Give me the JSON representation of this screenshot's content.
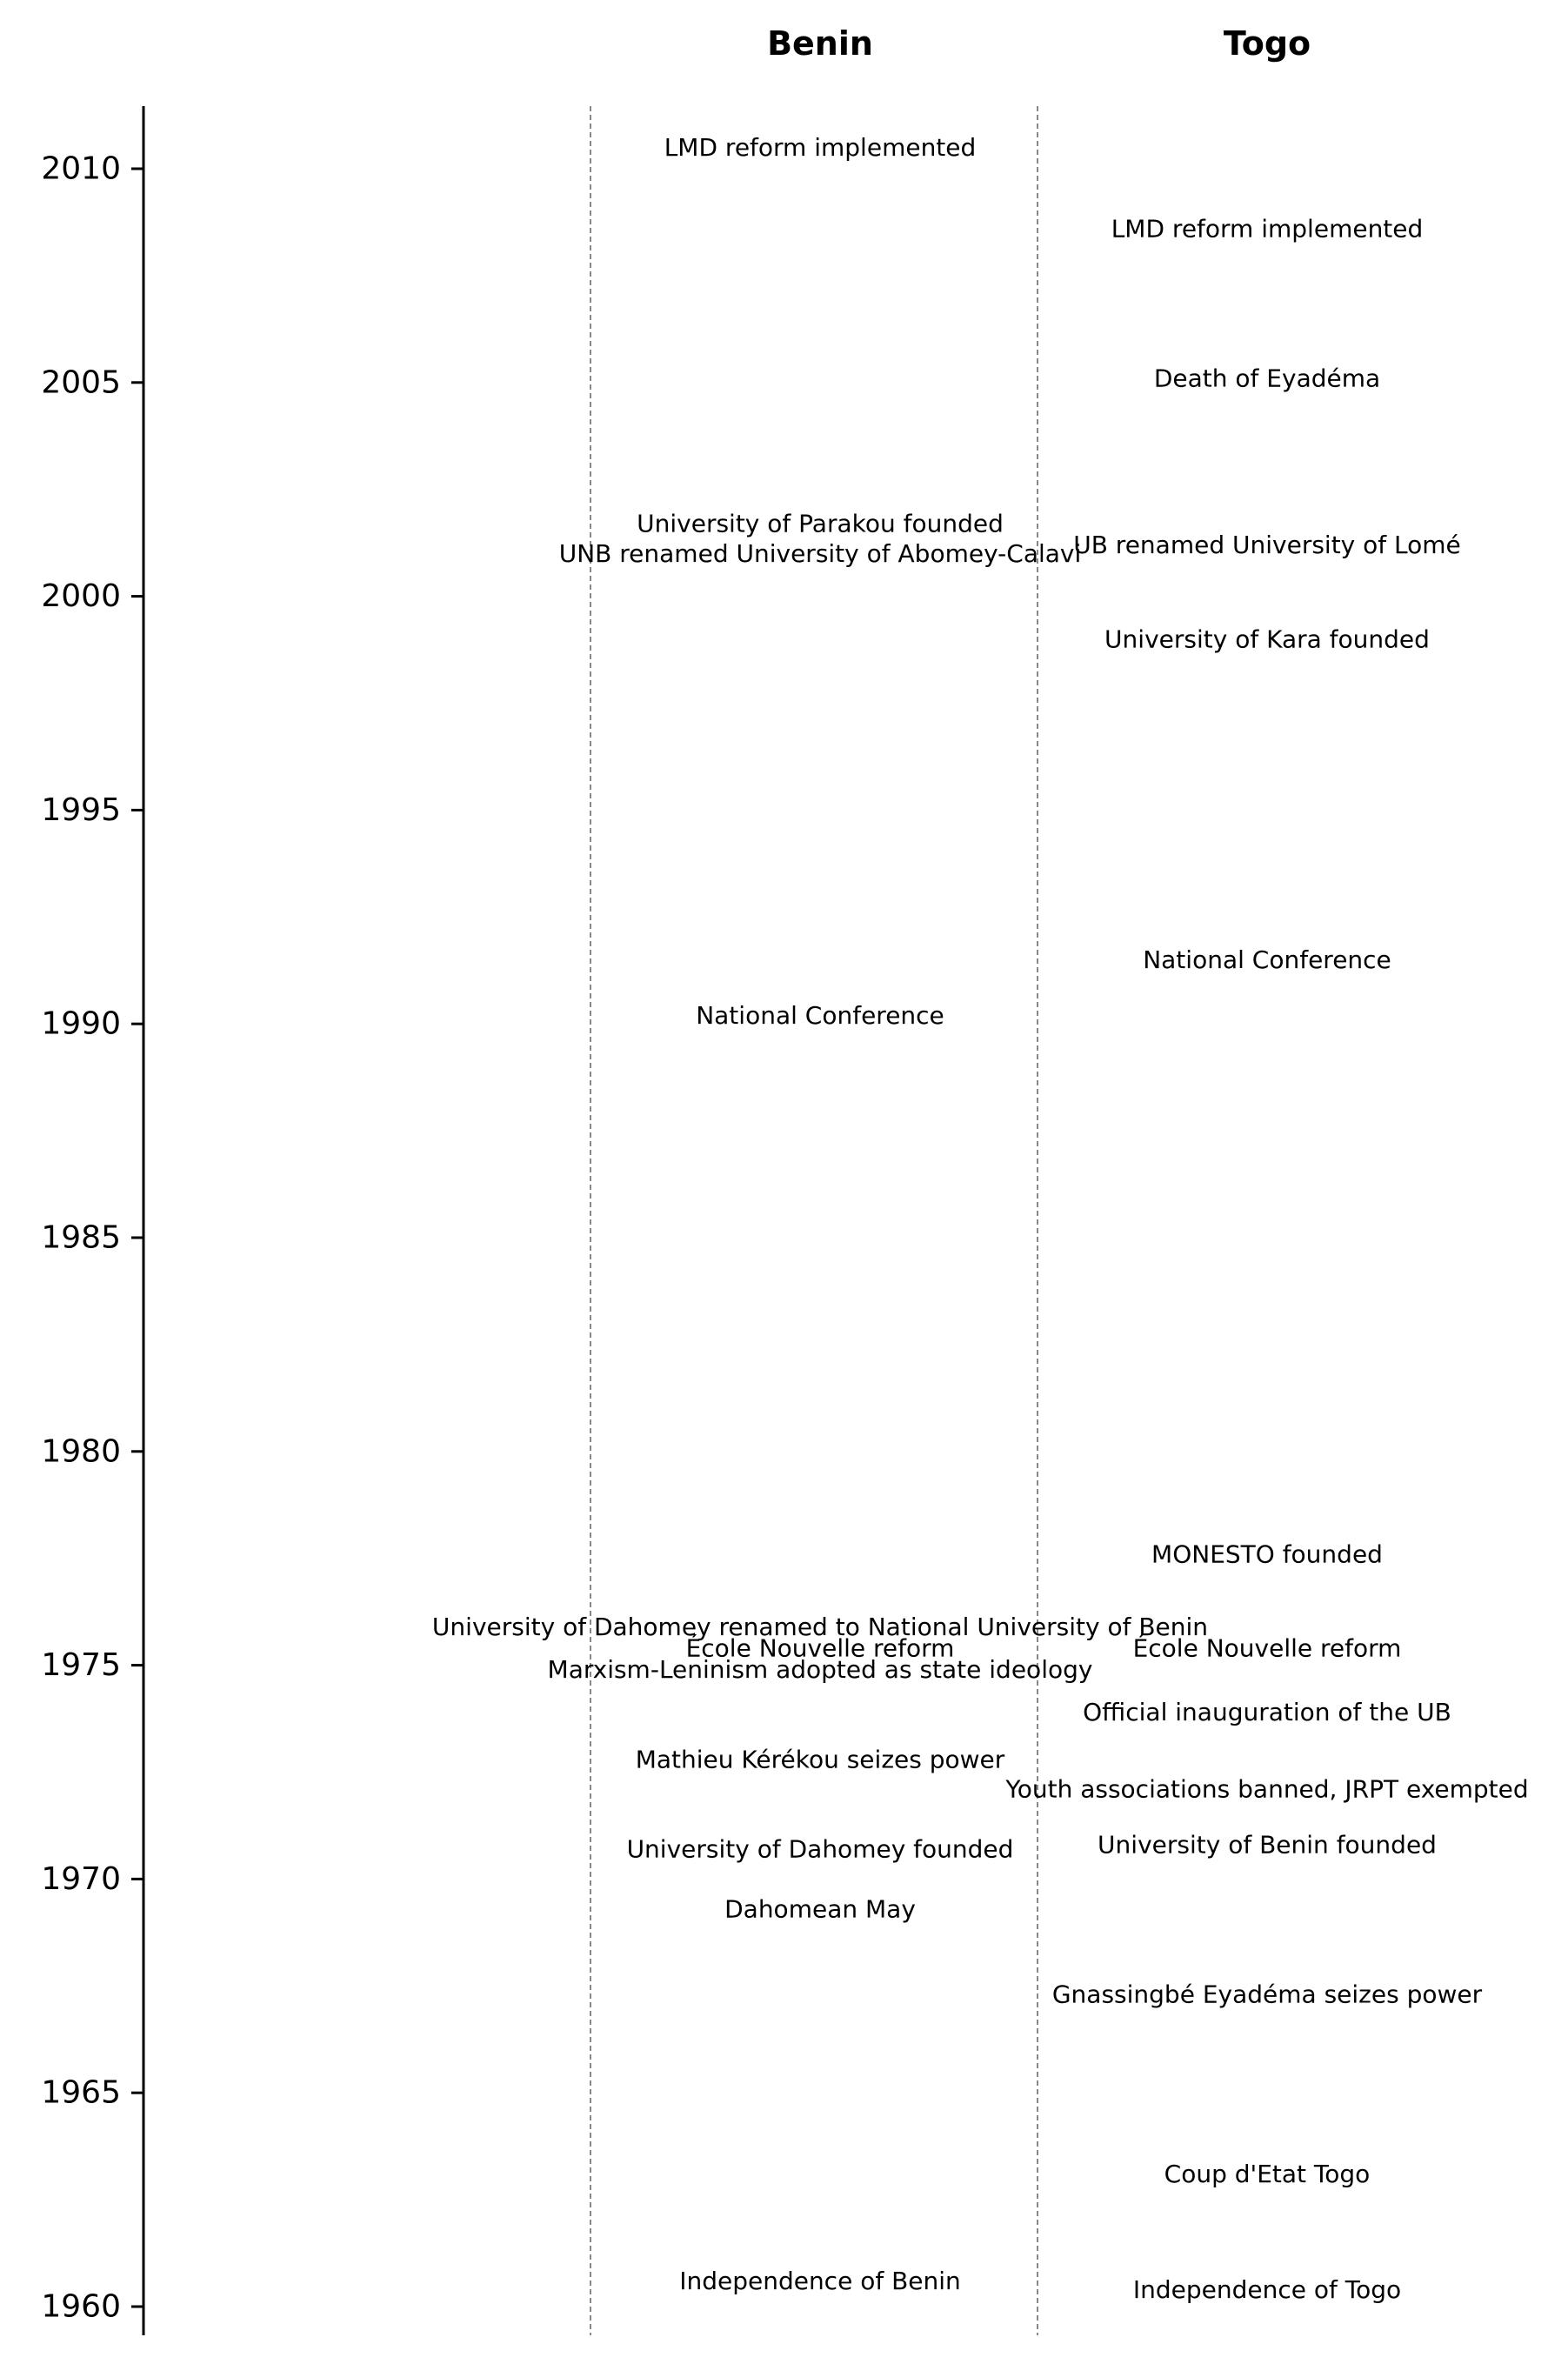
{
  "chart_data": {
    "type": "timeline",
    "columns": [
      "Benin",
      "Togo"
    ],
    "y_axis": {
      "ylim": [
        1959.5,
        2011.5
      ],
      "ticks": [
        1960,
        1965,
        1970,
        1975,
        1980,
        1985,
        1990,
        1995,
        2000,
        2005,
        2010
      ],
      "tick_labels": [
        "1960",
        "1965",
        "1970",
        "1975",
        "1980",
        "1985",
        "1990",
        "1995",
        "2000",
        "2005",
        "2010"
      ]
    },
    "grid": "dashed column separators",
    "events": [
      {
        "column": "Benin",
        "year": 2010.5,
        "label": "LMD reform implemented"
      },
      {
        "column": "Benin",
        "year": 2001.7,
        "label": "University of Parakou founded"
      },
      {
        "column": "Benin",
        "year": 2001.0,
        "label": "UNB renamed University of Abomey-Calavi"
      },
      {
        "column": "Benin",
        "year": 1990.2,
        "label": "National Conference"
      },
      {
        "column": "Benin",
        "year": 1975.9,
        "label": "University of Dahomey renamed to National University of Benin"
      },
      {
        "column": "Benin",
        "year": 1975.4,
        "label": "École Nouvelle reform"
      },
      {
        "column": "Benin",
        "year": 1974.9,
        "label": "Marxism-Leninism adopted as state ideology"
      },
      {
        "column": "Benin",
        "year": 1972.8,
        "label": "Mathieu Kérékou seizes power"
      },
      {
        "column": "Benin",
        "year": 1970.7,
        "label": "University of Dahomey founded"
      },
      {
        "column": "Benin",
        "year": 1969.3,
        "label": "Dahomean May"
      },
      {
        "column": "Benin",
        "year": 1960.6,
        "label": "Independence of Benin"
      },
      {
        "column": "Togo",
        "year": 2008.6,
        "label": "LMD reform implemented"
      },
      {
        "column": "Togo",
        "year": 2005.1,
        "label": "Death of Eyadéma"
      },
      {
        "column": "Togo",
        "year": 2001.2,
        "label": "UB renamed University of Lomé"
      },
      {
        "column": "Togo",
        "year": 1999.0,
        "label": "University of Kara founded"
      },
      {
        "column": "Togo",
        "year": 1991.5,
        "label": "National Conference"
      },
      {
        "column": "Togo",
        "year": 1977.6,
        "label": "MONESTO founded"
      },
      {
        "column": "Togo",
        "year": 1975.4,
        "label": "École Nouvelle reform"
      },
      {
        "column": "Togo",
        "year": 1973.9,
        "label": "Official inauguration of the UB"
      },
      {
        "column": "Togo",
        "year": 1972.1,
        "label": "Youth associations banned, JRPT exempted"
      },
      {
        "column": "Togo",
        "year": 1970.8,
        "label": "University of Benin founded"
      },
      {
        "column": "Togo",
        "year": 1967.3,
        "label": "Gnassingbé Eyadéma seizes power"
      },
      {
        "column": "Togo",
        "year": 1963.1,
        "label": "Coup d'Etat Togo"
      },
      {
        "column": "Togo",
        "year": 1960.4,
        "label": "Independence of Togo"
      }
    ]
  }
}
